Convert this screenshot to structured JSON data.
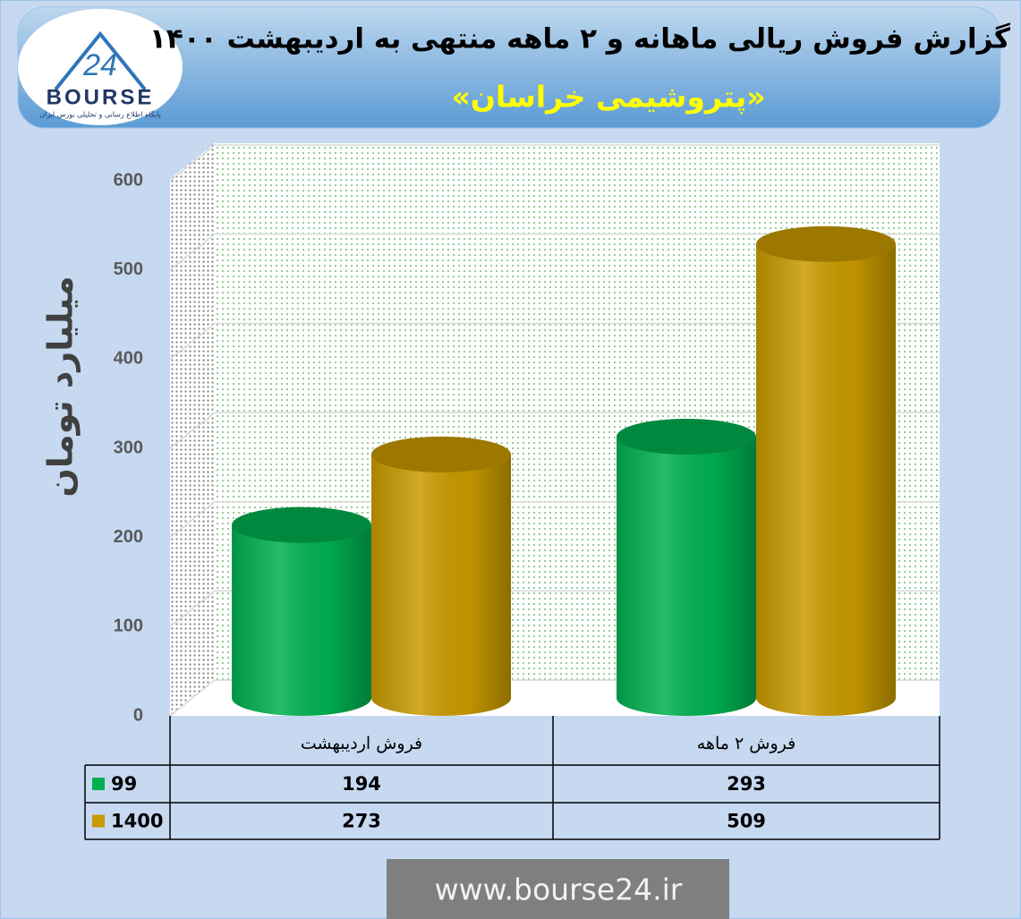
{
  "header": {
    "title": "گزارش فروش ریالی ماهانه و ۲ ماهه منتهی به اردیبهشت ۱۴۰۰",
    "subtitle": "«پتروشیمی خراسان»"
  },
  "logo": {
    "number": "24",
    "name": "BOURSE",
    "tagline": "پایگاه اطلاع رسانی و تحلیلی بورس ایران"
  },
  "chart_data": {
    "type": "bar3d",
    "ylabel": "میلیارد تومان",
    "categories": [
      "فروش اردیبهشت",
      "فروش ۲ ماهه"
    ],
    "series": [
      {
        "name": "99",
        "color": "#00b050",
        "values": [
          194,
          293
        ]
      },
      {
        "name": "1400",
        "color": "#c89a00",
        "values": [
          273,
          509
        ]
      }
    ],
    "ylim": [
      0,
      600
    ],
    "yticks": [
      0,
      100,
      200,
      300,
      400,
      500,
      600
    ],
    "grid": true,
    "data_table": true
  },
  "footer": {
    "url": "www.bourse24.ir"
  }
}
